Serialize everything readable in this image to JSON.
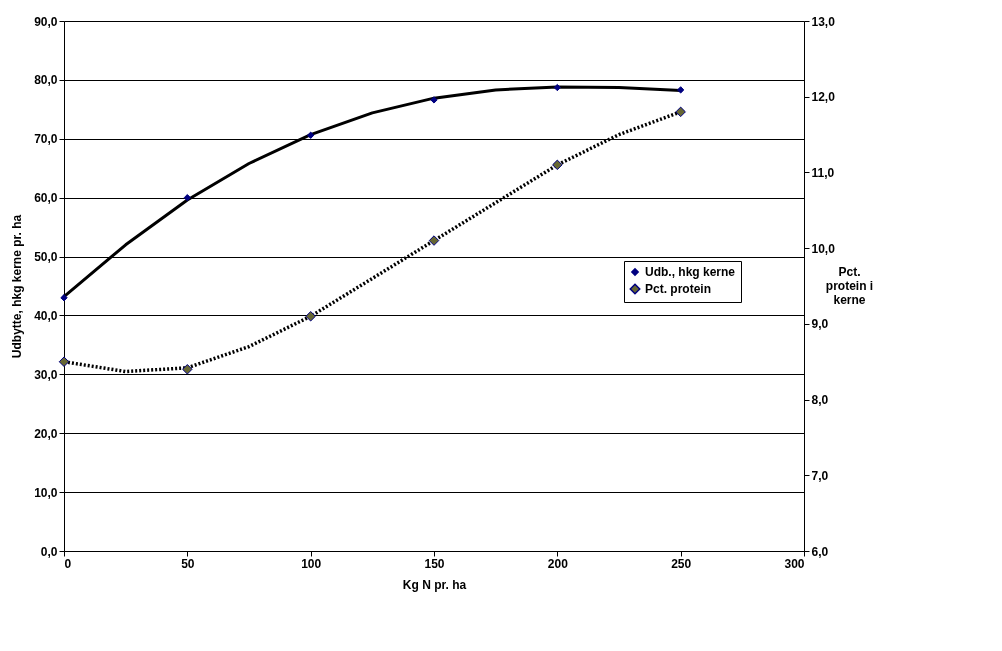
{
  "chart_data": {
    "type": "scatter",
    "xlabel": "Kg N pr. ha",
    "ylabel": "Udbytte, hkg kerne pr. ha",
    "y2label": "Pct. protein i kerne",
    "x": [
      0,
      50,
      100,
      150,
      200,
      250
    ],
    "xlim": [
      0,
      300
    ],
    "xticks": [
      0,
      50,
      100,
      150,
      200,
      250,
      300
    ],
    "ylim": [
      0,
      90
    ],
    "yticks": [
      {
        "value": 0,
        "label": "0,0"
      },
      {
        "value": 10,
        "label": "10,0"
      },
      {
        "value": 20,
        "label": "20,0"
      },
      {
        "value": 30,
        "label": "30,0"
      },
      {
        "value": 40,
        "label": "40,0"
      },
      {
        "value": 50,
        "label": "50,0"
      },
      {
        "value": 60,
        "label": "60,0"
      },
      {
        "value": 70,
        "label": "70,0"
      },
      {
        "value": 80,
        "label": "80,0"
      },
      {
        "value": 90,
        "label": "90,0"
      }
    ],
    "y2lim": [
      6,
      13
    ],
    "y2ticks": [
      {
        "value": 6,
        "label": "6,0"
      },
      {
        "value": 7,
        "label": "7,0"
      },
      {
        "value": 8,
        "label": "8,0"
      },
      {
        "value": 9,
        "label": "9,0"
      },
      {
        "value": 10,
        "label": "10,0"
      },
      {
        "value": 11,
        "label": "11,0"
      },
      {
        "value": 12,
        "label": "12,0"
      },
      {
        "value": 13,
        "label": "13,0"
      }
    ],
    "grid": "y",
    "legend": "right",
    "series": [
      {
        "type": "line",
        "marker": "none",
        "color": "#000000",
        "line_style": "solid",
        "x": [
          0,
          25,
          50,
          75,
          100,
          125,
          150,
          175,
          200,
          225,
          250
        ],
        "values": [
          43.2,
          52.0,
          59.6,
          65.8,
          70.7,
          74.4,
          76.9,
          78.3,
          78.8,
          78.7,
          78.2
        ]
      },
      {
        "type": "line",
        "marker": "none",
        "color": "#000000",
        "line_style": "dotted",
        "axis": "y2",
        "x": [
          0,
          25,
          50,
          75,
          100,
          125,
          150,
          175,
          200,
          225,
          250
        ],
        "values": [
          8.5,
          8.37,
          8.42,
          8.7,
          9.1,
          9.6,
          10.1,
          10.6,
          11.1,
          11.5,
          11.8
        ]
      },
      {
        "marker": "diamond",
        "name": "Udb., hkg kerne",
        "color": "#000080",
        "values": [
          43.0,
          60.0,
          70.6,
          76.6,
          78.7,
          78.3
        ]
      },
      {
        "marker": "diamond",
        "name": "Pct. protein",
        "color": "#666633",
        "axis": "y2",
        "values": [
          8.5,
          8.4,
          9.1,
          10.1,
          11.1,
          11.8
        ]
      }
    ]
  }
}
